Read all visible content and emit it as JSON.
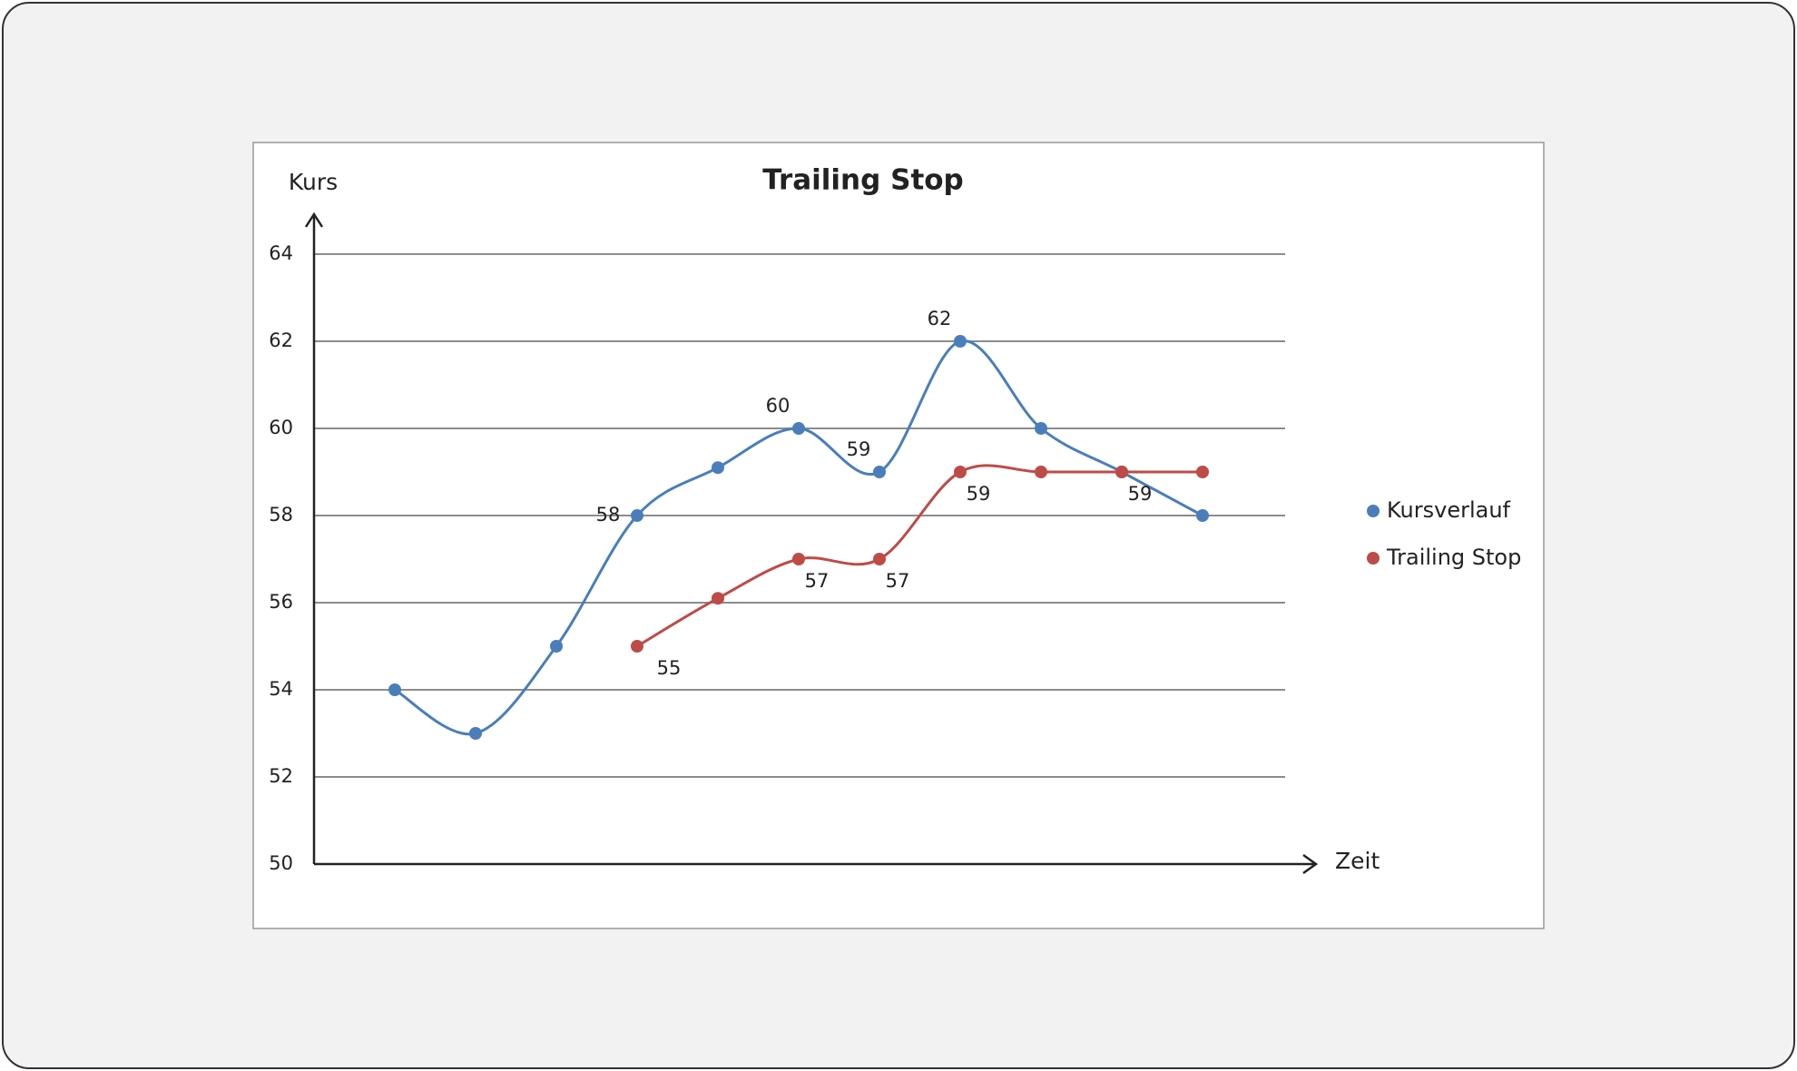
{
  "chart_data": {
    "type": "line",
    "title": "Trailing Stop",
    "y_label": "Kurs",
    "x_label": "Zeit",
    "categories": [
      null,
      null,
      null,
      null,
      null,
      null,
      null,
      null,
      null,
      null,
      null
    ],
    "series": [
      {
        "name": "Kursverlauf",
        "color": "#4a7ebb",
        "values": [
          54,
          53,
          55,
          58,
          59.1,
          60,
          59,
          62,
          60,
          59,
          58
        ],
        "value_labels": [
          null,
          null,
          null,
          "58",
          null,
          "60",
          "59",
          "62",
          null,
          null,
          null
        ]
      },
      {
        "name": "Trailing Stop",
        "color": "#be4b48",
        "values": [
          null,
          null,
          null,
          55,
          56.1,
          57,
          57,
          59,
          59,
          59,
          59
        ],
        "value_labels": [
          null,
          null,
          null,
          "55",
          null,
          "57",
          "57",
          "59",
          null,
          "59",
          null
        ]
      }
    ],
    "ylim": [
      50,
      64
    ],
    "yticks": [
      50,
      52,
      54,
      56,
      58,
      60,
      62,
      64
    ],
    "grid": true,
    "smooth": true,
    "legend": "right"
  }
}
